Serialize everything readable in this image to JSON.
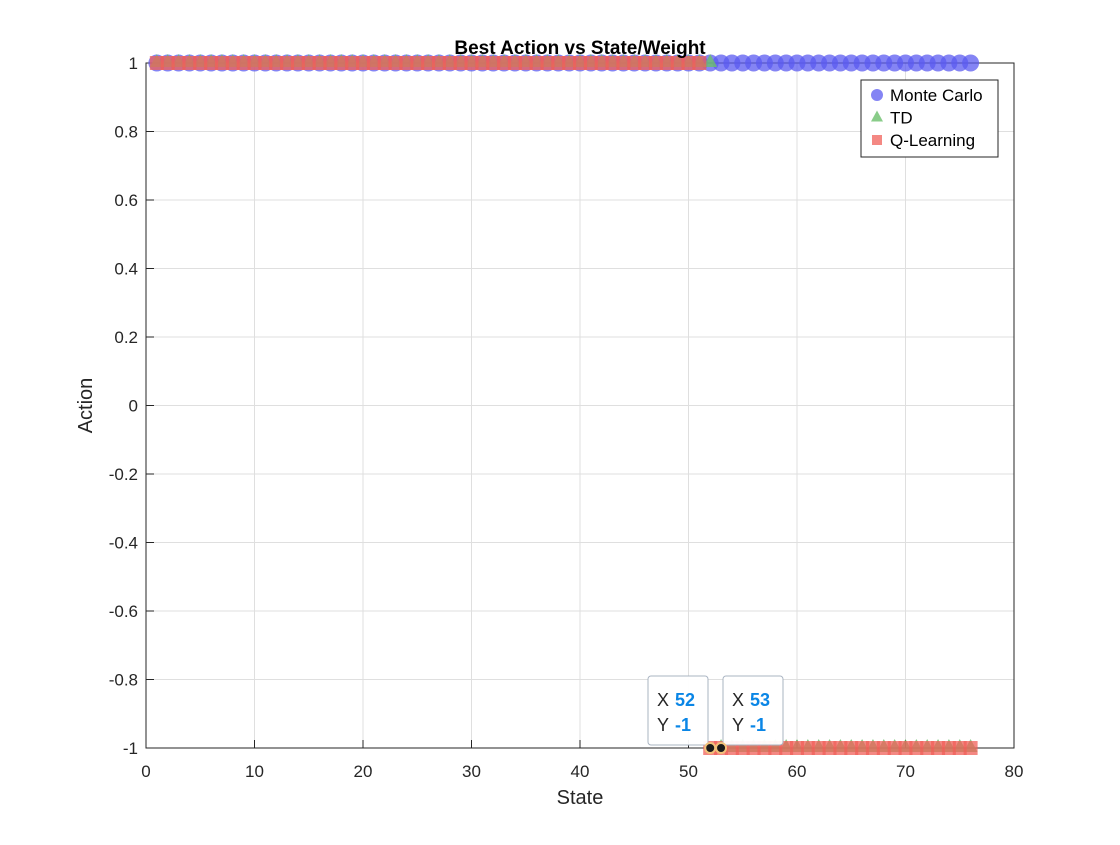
{
  "chart_data": {
    "type": "scatter",
    "title": "Best Action vs State/Weight",
    "xlabel": "State",
    "ylabel": "Action",
    "xlim": [
      0,
      80
    ],
    "ylim": [
      -1,
      1
    ],
    "grid": true,
    "legend_placement": "top-right",
    "x_ticks": [
      "0",
      "10",
      "20",
      "30",
      "40",
      "50",
      "60",
      "70",
      "80"
    ],
    "y_ticks": [
      "1",
      "0.8",
      "0.6",
      "0.4",
      "0.2",
      "0",
      "-0.2",
      "-0.4",
      "-0.6",
      "-0.8",
      "-1"
    ],
    "series": [
      {
        "name": "Monte Carlo",
        "marker": "circle",
        "color": "#5b5bf0",
        "segments": [
          {
            "x_from": 1,
            "x_to": 76,
            "y": 1
          }
        ]
      },
      {
        "name": "TD",
        "marker": "triangle",
        "color": "#6cbf6c",
        "segments": [
          {
            "x_from": 1,
            "x_to": 52,
            "y": 1
          },
          {
            "x_from": 53,
            "x_to": 76,
            "y": -1
          }
        ]
      },
      {
        "name": "Q-Learning",
        "marker": "square",
        "color": "#f0605a",
        "segments": [
          {
            "x_from": 1,
            "x_to": 51,
            "y": 1
          },
          {
            "x_from": 52,
            "x_to": 76,
            "y": -1
          }
        ]
      }
    ],
    "datatips": [
      {
        "x_label": "X",
        "x_value": "52",
        "y_label": "Y",
        "y_value": "-1",
        "x": 52,
        "y": -1
      },
      {
        "x_label": "X",
        "x_value": "53",
        "y_label": "Y",
        "y_value": "-1",
        "x": 53,
        "y": -1
      }
    ],
    "colors": {
      "axis": "#262626",
      "grid": "#dfdfdf",
      "datatip_value": "#0a86e6"
    }
  }
}
